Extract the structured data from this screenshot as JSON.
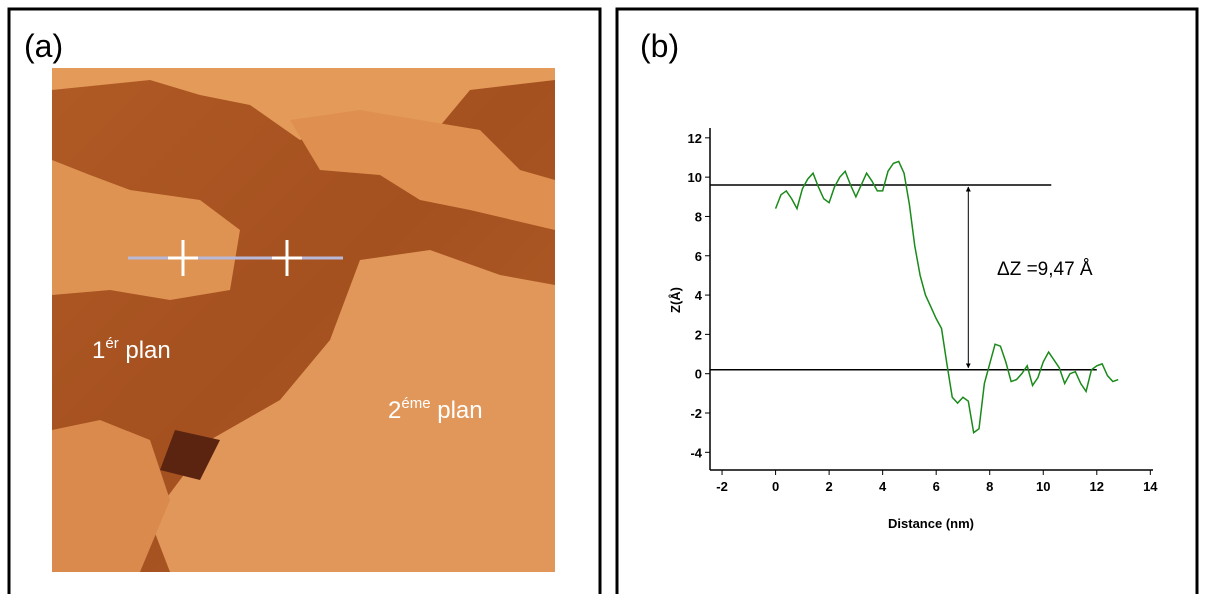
{
  "panel_a": {
    "label": "(a)",
    "first_plane": {
      "base": "1",
      "sup": "ér",
      "rest": " plan"
    },
    "second_plane": {
      "base": "2",
      "sup": "éme",
      "rest": " plan"
    }
  },
  "panel_b": {
    "label": "(b)"
  },
  "chart_data": {
    "type": "line",
    "x_label": "Distance (nm)",
    "y_label": "Z(Å)",
    "annotation": "ΔZ =9,47 Å",
    "xlim": [
      -2.45,
      14.1
    ],
    "ylim": [
      -4.9,
      12.5
    ],
    "xticks": [
      -2,
      0,
      2,
      4,
      6,
      8,
      10,
      12,
      14
    ],
    "yticks": [
      -4,
      -2,
      0,
      2,
      4,
      6,
      8,
      10,
      12
    ],
    "x": [
      0,
      0.2,
      0.4,
      0.6,
      0.8,
      1.0,
      1.2,
      1.4,
      1.6,
      1.8,
      2.0,
      2.2,
      2.4,
      2.6,
      2.8,
      3.0,
      3.2,
      3.4,
      3.6,
      3.8,
      4.0,
      4.2,
      4.4,
      4.6,
      4.8,
      5.0,
      5.2,
      5.4,
      5.6,
      5.8,
      6.0,
      6.2,
      6.4,
      6.6,
      6.8,
      7.0,
      7.2,
      7.4,
      7.6,
      7.8,
      8.0,
      8.2,
      8.4,
      8.6,
      8.8,
      9.0,
      9.2,
      9.4,
      9.6,
      9.8,
      10.0,
      10.2,
      10.4,
      10.6,
      10.8,
      11.0,
      11.2,
      11.4,
      11.6,
      11.8,
      12.0,
      12.2,
      12.4,
      12.6,
      12.8
    ],
    "series": [
      {
        "color": "#1a8a1a",
        "values": [
          8.4,
          9.1,
          9.3,
          8.9,
          8.4,
          9.4,
          9.9,
          10.2,
          9.5,
          8.9,
          8.7,
          9.5,
          10.0,
          10.3,
          9.6,
          9.0,
          9.6,
          10.2,
          9.8,
          9.3,
          9.3,
          10.3,
          10.7,
          10.8,
          10.2,
          8.6,
          6.5,
          5.0,
          4.0,
          3.4,
          2.8,
          2.3,
          0.5,
          -1.2,
          -1.5,
          -1.2,
          -1.4,
          -3.0,
          -2.8,
          -0.5,
          0.5,
          1.5,
          1.4,
          0.6,
          -0.4,
          -0.3,
          0.0,
          0.4,
          -0.6,
          -0.2,
          0.6,
          1.1,
          0.7,
          0.3,
          -0.5,
          0.0,
          0.1,
          -0.5,
          -0.9,
          0.2,
          0.4,
          0.5,
          -0.1,
          -0.4,
          -0.3
        ]
      }
    ],
    "reference_lines": [
      {
        "y": 9.6,
        "x": [
          -2.45,
          10.3
        ]
      },
      {
        "y": 0.2,
        "x": [
          -2.45,
          12.0
        ]
      }
    ],
    "arrow": {
      "x": 7.2,
      "y": [
        9.5,
        0.3
      ]
    }
  }
}
